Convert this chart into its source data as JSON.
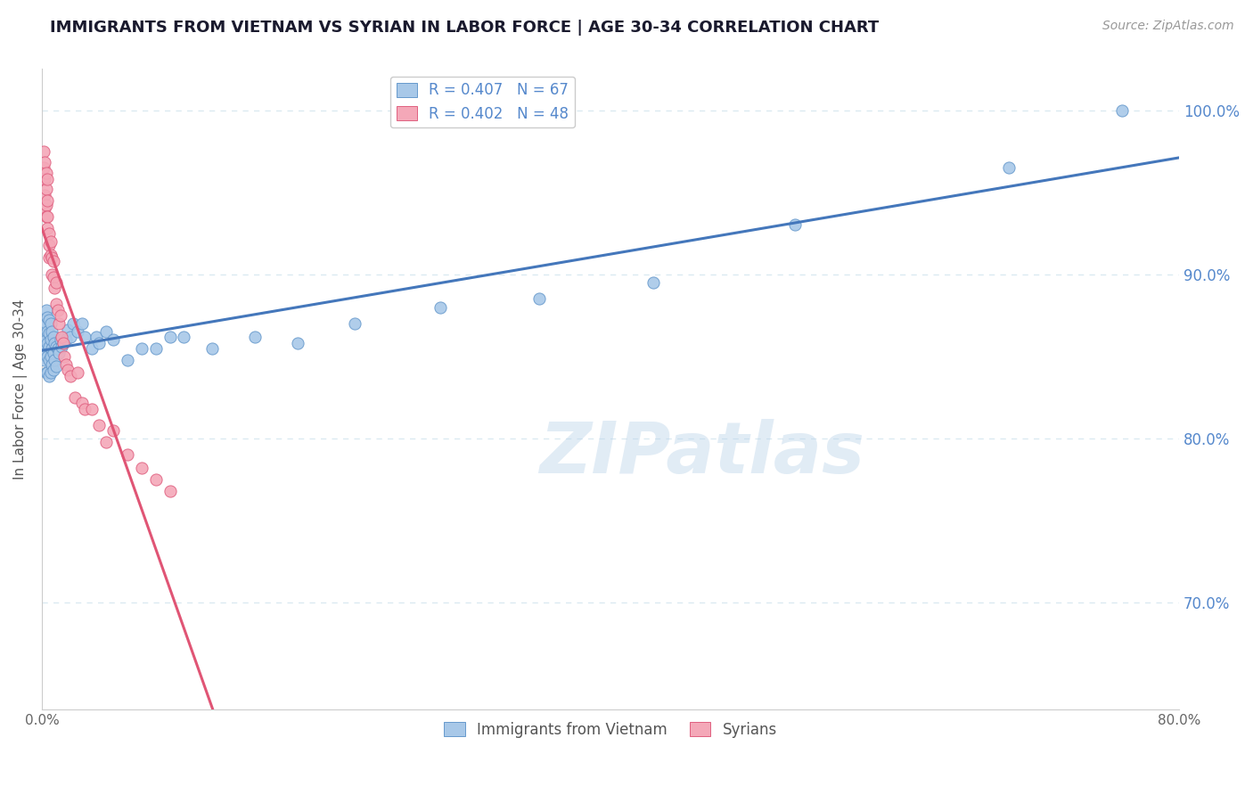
{
  "title": "IMMIGRANTS FROM VIETNAM VS SYRIAN IN LABOR FORCE | AGE 30-34 CORRELATION CHART",
  "source": "Source: ZipAtlas.com",
  "ylabel": "In Labor Force | Age 30-34",
  "xlim": [
    0.0,
    0.8
  ],
  "ylim": [
    0.635,
    1.025
  ],
  "ytick_pos": [
    0.7,
    0.8,
    0.9,
    1.0
  ],
  "ytick_labels": [
    "70.0%",
    "80.0%",
    "90.0%",
    "100.0%"
  ],
  "xticks": [
    0.0,
    0.1,
    0.2,
    0.3,
    0.4,
    0.5,
    0.6,
    0.7,
    0.8
  ],
  "xtick_labels": [
    "0.0%",
    "",
    "",
    "",
    "",
    "",
    "",
    "",
    "80.0%"
  ],
  "vietnam_R": 0.407,
  "vietnam_N": 67,
  "syrian_R": 0.402,
  "syrian_N": 48,
  "vietnam_color": "#A8C8E8",
  "syrian_color": "#F4A8B8",
  "vietnam_edge_color": "#6699CC",
  "syrian_edge_color": "#E06080",
  "vietnam_line_color": "#4477BB",
  "syrian_line_color": "#E05575",
  "legend_label_vietnam": "Immigrants from Vietnam",
  "legend_label_syrian": "Syrians",
  "watermark": "ZIPatlas",
  "background_color": "#FFFFFF",
  "grid_color": "#D8E8F0",
  "title_color": "#1A1A2E",
  "right_axis_color": "#5588CC",
  "vietnam_x": [
    0.001,
    0.001,
    0.002,
    0.002,
    0.002,
    0.003,
    0.003,
    0.003,
    0.003,
    0.003,
    0.004,
    0.004,
    0.004,
    0.004,
    0.004,
    0.005,
    0.005,
    0.005,
    0.005,
    0.005,
    0.006,
    0.006,
    0.006,
    0.006,
    0.007,
    0.007,
    0.007,
    0.008,
    0.008,
    0.008,
    0.009,
    0.009,
    0.01,
    0.01,
    0.011,
    0.012,
    0.013,
    0.014,
    0.015,
    0.016,
    0.017,
    0.018,
    0.02,
    0.022,
    0.025,
    0.028,
    0.03,
    0.035,
    0.038,
    0.04,
    0.045,
    0.05,
    0.06,
    0.07,
    0.08,
    0.09,
    0.1,
    0.12,
    0.15,
    0.18,
    0.22,
    0.28,
    0.35,
    0.43,
    0.53,
    0.68,
    0.76
  ],
  "vietnam_y": [
    0.855,
    0.862,
    0.848,
    0.858,
    0.868,
    0.84,
    0.852,
    0.86,
    0.87,
    0.878,
    0.84,
    0.85,
    0.858,
    0.865,
    0.874,
    0.838,
    0.848,
    0.856,
    0.864,
    0.872,
    0.84,
    0.85,
    0.86,
    0.87,
    0.845,
    0.855,
    0.865,
    0.842,
    0.852,
    0.862,
    0.848,
    0.858,
    0.844,
    0.856,
    0.855,
    0.852,
    0.86,
    0.856,
    0.858,
    0.862,
    0.86,
    0.866,
    0.862,
    0.87,
    0.865,
    0.87,
    0.862,
    0.855,
    0.862,
    0.858,
    0.865,
    0.86,
    0.848,
    0.855,
    0.855,
    0.862,
    0.862,
    0.855,
    0.862,
    0.858,
    0.87,
    0.88,
    0.885,
    0.895,
    0.93,
    0.965,
    1.0
  ],
  "syrian_x": [
    0.001,
    0.001,
    0.001,
    0.002,
    0.002,
    0.002,
    0.002,
    0.003,
    0.003,
    0.003,
    0.003,
    0.004,
    0.004,
    0.004,
    0.004,
    0.005,
    0.005,
    0.005,
    0.006,
    0.006,
    0.007,
    0.007,
    0.008,
    0.008,
    0.009,
    0.01,
    0.01,
    0.011,
    0.012,
    0.013,
    0.014,
    0.015,
    0.016,
    0.017,
    0.018,
    0.02,
    0.023,
    0.025,
    0.028,
    0.03,
    0.035,
    0.04,
    0.045,
    0.05,
    0.06,
    0.07,
    0.08,
    0.09
  ],
  "syrian_y": [
    0.975,
    0.965,
    0.958,
    0.968,
    0.958,
    0.948,
    0.94,
    0.962,
    0.952,
    0.942,
    0.935,
    0.945,
    0.935,
    0.928,
    0.958,
    0.918,
    0.91,
    0.925,
    0.912,
    0.92,
    0.9,
    0.91,
    0.898,
    0.908,
    0.892,
    0.882,
    0.895,
    0.878,
    0.87,
    0.875,
    0.862,
    0.858,
    0.85,
    0.845,
    0.842,
    0.838,
    0.825,
    0.84,
    0.822,
    0.818,
    0.818,
    0.808,
    0.798,
    0.805,
    0.79,
    0.782,
    0.775,
    0.768
  ]
}
